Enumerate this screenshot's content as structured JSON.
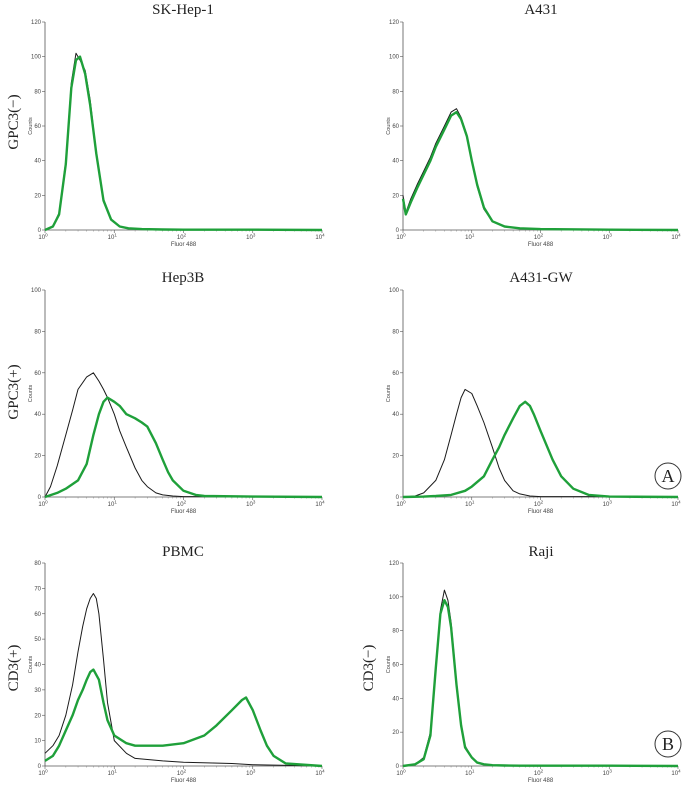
{
  "figure": {
    "row_labels": [
      "GPC3(−)",
      "GPC3(+)",
      "CD3(+)",
      "CD3(−)"
    ],
    "badges": [
      "A",
      "B"
    ]
  },
  "colors": {
    "control": "#1a1a1a",
    "stained": "#1fa03a"
  },
  "chart_data": [
    {
      "type": "line",
      "title": "SK-Hep-1",
      "xlabel": "Fluor 488",
      "ylabel": "Counts",
      "x_scale": "log",
      "xlim": [
        1,
        10000
      ],
      "x_ticks": [
        "10",
        "10",
        "10",
        "10",
        "10"
      ],
      "x_tick_exp": [
        "0",
        "1",
        "2",
        "3",
        "4"
      ],
      "ylim": [
        0,
        120
      ],
      "y_ticks": [
        "0",
        "20",
        "40",
        "60",
        "80",
        "100",
        "120"
      ],
      "series": [
        {
          "color": "#1a1a1a",
          "x": [
            1,
            1.3,
            1.6,
            2,
            2.4,
            2.8,
            3.2,
            3.8,
            4.5,
            5.5,
            7,
            9,
            12,
            16,
            25,
            50,
            100,
            1000,
            10000
          ],
          "values": [
            0,
            2,
            10,
            40,
            85,
            102,
            98,
            92,
            75,
            45,
            18,
            6,
            2,
            1,
            0.5,
            0.3,
            0.2,
            0.2,
            0
          ]
        },
        {
          "color": "#1fa03a",
          "x": [
            1,
            1.3,
            1.6,
            2,
            2.4,
            2.8,
            3.2,
            3.8,
            4.5,
            5.5,
            7,
            9,
            12,
            16,
            25,
            50,
            100,
            1000,
            10000
          ],
          "values": [
            0,
            2,
            9,
            38,
            82,
            98,
            100,
            90,
            72,
            44,
            17,
            6,
            2,
            1,
            0.5,
            0.3,
            0.2,
            0.2,
            0
          ]
        }
      ]
    },
    {
      "type": "line",
      "title": "A431",
      "xlabel": "Fluor 488",
      "ylabel": "Counts",
      "x_scale": "log",
      "xlim": [
        1,
        10000
      ],
      "x_ticks": [
        "10",
        "10",
        "10",
        "10",
        "10"
      ],
      "x_tick_exp": [
        "0",
        "1",
        "2",
        "3",
        "4"
      ],
      "ylim": [
        0,
        120
      ],
      "y_ticks": [
        "0",
        "20",
        "40",
        "60",
        "80",
        "100",
        "120"
      ],
      "series": [
        {
          "color": "#1a1a1a",
          "x": [
            1,
            1.1,
            1.3,
            1.6,
            2,
            2.5,
            3,
            4,
            5,
            6,
            7,
            8.5,
            10,
            12,
            15,
            20,
            30,
            50,
            100,
            1000,
            10000
          ],
          "values": [
            20,
            10,
            18,
            26,
            34,
            42,
            50,
            60,
            68,
            70,
            65,
            55,
            40,
            25,
            12,
            5,
            2,
            1,
            0.5,
            0.2,
            0
          ]
        },
        {
          "color": "#1fa03a",
          "x": [
            1,
            1.1,
            1.3,
            1.6,
            2,
            2.5,
            3,
            4,
            5,
            6,
            7,
            8.5,
            10,
            12,
            15,
            20,
            30,
            50,
            100,
            1000,
            10000
          ],
          "values": [
            18,
            9,
            16,
            24,
            32,
            40,
            48,
            58,
            66,
            68,
            64,
            54,
            40,
            26,
            13,
            5,
            2,
            1,
            0.5,
            0.2,
            0
          ]
        }
      ]
    },
    {
      "type": "line",
      "title": "Hep3B",
      "xlabel": "Fluor 488",
      "ylabel": "Counts",
      "x_scale": "log",
      "xlim": [
        1,
        10000
      ],
      "x_ticks": [
        "10",
        "10",
        "10",
        "10",
        "10"
      ],
      "x_tick_exp": [
        "0",
        "1",
        "2",
        "3",
        "4"
      ],
      "ylim": [
        0,
        100
      ],
      "y_ticks": [
        "0",
        "20",
        "40",
        "60",
        "80",
        "100"
      ],
      "series": [
        {
          "color": "#1a1a1a",
          "x": [
            1,
            1.2,
            1.5,
            2,
            2.5,
            3,
            4,
            5,
            6,
            7,
            8,
            10,
            12,
            15,
            20,
            25,
            30,
            40,
            50,
            70,
            100,
            1000,
            10000
          ],
          "values": [
            0,
            5,
            15,
            30,
            42,
            52,
            58,
            60,
            56,
            52,
            48,
            40,
            32,
            24,
            14,
            8,
            5,
            2,
            1,
            0.5,
            0.2,
            0.2,
            0
          ]
        },
        {
          "color": "#1fa03a",
          "x": [
            1,
            1.5,
            2,
            3,
            4,
            5,
            6,
            7,
            8,
            10,
            12,
            15,
            20,
            25,
            30,
            40,
            50,
            60,
            70,
            100,
            150,
            200,
            1000,
            10000
          ],
          "values": [
            0,
            2,
            4,
            8,
            16,
            30,
            40,
            46,
            48,
            46,
            44,
            40,
            38,
            36,
            34,
            26,
            18,
            12,
            8,
            3,
            1,
            0.5,
            0.2,
            0
          ]
        }
      ]
    },
    {
      "type": "line",
      "title": "A431-GW",
      "xlabel": "Fluor 488",
      "ylabel": "Counts",
      "x_scale": "log",
      "xlim": [
        1,
        10000
      ],
      "x_ticks": [
        "10",
        "10",
        "10",
        "10",
        "10"
      ],
      "x_tick_exp": [
        "0",
        "1",
        "2",
        "3",
        "4"
      ],
      "ylim": [
        0,
        100
      ],
      "y_ticks": [
        "0",
        "20",
        "40",
        "60",
        "80",
        "100"
      ],
      "series": [
        {
          "color": "#1a1a1a",
          "x": [
            1,
            1.5,
            2,
            3,
            4,
            5,
            6,
            7,
            8,
            10,
            12,
            15,
            20,
            25,
            30,
            40,
            50,
            70,
            100,
            1000,
            10000
          ],
          "values": [
            0,
            0.5,
            2,
            8,
            18,
            30,
            40,
            48,
            52,
            50,
            44,
            36,
            24,
            14,
            8,
            3,
            1.5,
            0.5,
            0.2,
            0.2,
            0
          ]
        },
        {
          "color": "#1fa03a",
          "x": [
            1,
            2,
            3,
            5,
            8,
            10,
            15,
            20,
            25,
            30,
            40,
            50,
            60,
            70,
            80,
            100,
            150,
            200,
            300,
            500,
            1000,
            10000
          ],
          "values": [
            0,
            0.2,
            0.5,
            1,
            3,
            5,
            10,
            18,
            24,
            30,
            38,
            44,
            46,
            44,
            40,
            32,
            18,
            10,
            4,
            1,
            0.2,
            0
          ]
        }
      ]
    },
    {
      "type": "line",
      "title": "PBMC",
      "xlabel": "Fluor 488",
      "ylabel": "Counts",
      "x_scale": "log",
      "xlim": [
        1,
        10000
      ],
      "x_ticks": [
        "10",
        "10",
        "10",
        "10",
        "10"
      ],
      "x_tick_exp": [
        "0",
        "1",
        "2",
        "3",
        "4"
      ],
      "ylim": [
        0,
        80
      ],
      "y_ticks": [
        "0",
        "10",
        "20",
        "30",
        "40",
        "50",
        "60",
        "70",
        "80"
      ],
      "series": [
        {
          "color": "#1a1a1a",
          "x": [
            1,
            1.3,
            1.6,
            2,
            2.5,
            3,
            3.5,
            4,
            4.5,
            5,
            5.5,
            6,
            7,
            8,
            10,
            15,
            20,
            50,
            100,
            500,
            1000,
            10000
          ],
          "values": [
            5,
            8,
            12,
            20,
            32,
            45,
            55,
            62,
            66,
            68,
            66,
            60,
            42,
            25,
            10,
            5,
            3,
            2,
            1.5,
            1,
            0.5,
            0
          ]
        },
        {
          "color": "#1fa03a",
          "x": [
            1,
            1.3,
            1.6,
            2,
            2.5,
            3,
            3.5,
            4,
            4.5,
            5,
            6,
            7,
            8,
            10,
            15,
            20,
            30,
            50,
            100,
            200,
            300,
            500,
            700,
            800,
            1000,
            1300,
            1600,
            2000,
            3000,
            10000
          ],
          "values": [
            2,
            4,
            8,
            14,
            20,
            26,
            30,
            34,
            37,
            38,
            34,
            25,
            18,
            12,
            9,
            8,
            8,
            8,
            9,
            12,
            16,
            22,
            26,
            27,
            22,
            14,
            8,
            4,
            1,
            0
          ]
        }
      ]
    },
    {
      "type": "line",
      "title": "Raji",
      "xlabel": "Fluor 488",
      "ylabel": "Counts",
      "x_scale": "log",
      "xlim": [
        1,
        10000
      ],
      "x_ticks": [
        "10",
        "10",
        "10",
        "10",
        "10"
      ],
      "x_tick_exp": [
        "0",
        "1",
        "2",
        "3",
        "4"
      ],
      "ylim": [
        0,
        120
      ],
      "y_ticks": [
        "0",
        "20",
        "40",
        "60",
        "80",
        "100",
        "120"
      ],
      "series": [
        {
          "color": "#1a1a1a",
          "x": [
            1,
            1.5,
            2,
            2.5,
            3,
            3.5,
            4,
            4.5,
            5,
            6,
            7,
            8,
            10,
            12,
            15,
            20,
            30,
            50,
            100,
            1000,
            10000
          ],
          "values": [
            0,
            1,
            5,
            20,
            60,
            92,
            104,
            98,
            85,
            50,
            25,
            12,
            5,
            2,
            1,
            0.5,
            0.3,
            0.2,
            0.2,
            0.2,
            0
          ]
        },
        {
          "color": "#1fa03a",
          "x": [
            1,
            1.5,
            2,
            2.5,
            3,
            3.5,
            4,
            4.5,
            5,
            6,
            7,
            8,
            10,
            12,
            15,
            20,
            30,
            50,
            100,
            1000,
            10000
          ],
          "values": [
            0,
            1,
            4,
            18,
            58,
            90,
            98,
            94,
            82,
            48,
            24,
            11,
            5,
            2,
            1,
            0.5,
            0.3,
            0.2,
            0.2,
            0.2,
            0
          ]
        }
      ]
    }
  ]
}
